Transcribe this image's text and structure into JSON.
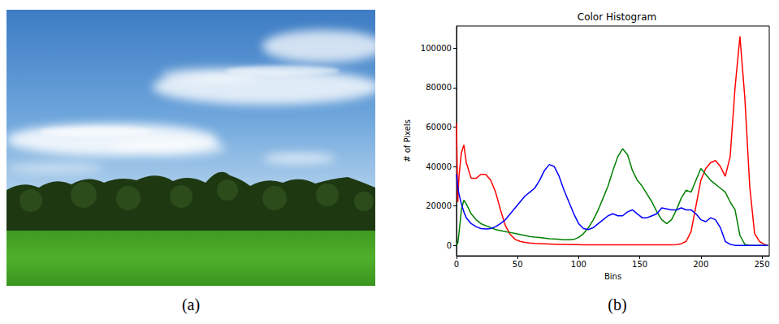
{
  "panel_labels": [
    "(a)",
    "(b)"
  ],
  "chart_data": {
    "type": "line",
    "title": "Color Histogram",
    "x_label": "Bins",
    "y_label": "# of Pixels",
    "x": [
      0,
      1,
      2,
      4,
      6,
      8,
      12,
      16,
      20,
      24,
      28,
      32,
      36,
      40,
      44,
      48,
      52,
      56,
      60,
      64,
      68,
      72,
      76,
      80,
      84,
      88,
      92,
      96,
      100,
      104,
      108,
      112,
      116,
      120,
      124,
      128,
      132,
      136,
      140,
      144,
      148,
      152,
      156,
      160,
      164,
      168,
      172,
      176,
      180,
      184,
      188,
      192,
      196,
      200,
      204,
      208,
      212,
      216,
      220,
      224,
      228,
      232,
      236,
      240,
      244,
      248,
      252,
      255
    ],
    "series": [
      {
        "color": "#ff0000",
        "values": [
          62000,
          22000,
          35000,
          47000,
          51000,
          42000,
          34000,
          34000,
          36000,
          36000,
          33000,
          27000,
          18000,
          10000,
          5500,
          3000,
          2000,
          1500,
          1200,
          1000,
          900,
          800,
          700,
          600,
          500,
          500,
          400,
          400,
          400,
          300,
          300,
          300,
          300,
          300,
          300,
          300,
          300,
          300,
          300,
          300,
          300,
          300,
          300,
          300,
          300,
          300,
          300,
          300,
          400,
          800,
          2000,
          7000,
          20000,
          33000,
          39000,
          42000,
          43000,
          40000,
          35000,
          45000,
          80000,
          106000,
          75000,
          30000,
          6000,
          2000,
          500,
          0
        ]
      },
      {
        "color": "#008000",
        "values": [
          0,
          1000,
          6000,
          18000,
          23000,
          21000,
          16000,
          13000,
          11000,
          10000,
          9000,
          8000,
          7500,
          7000,
          6500,
          6000,
          5500,
          5000,
          4500,
          4200,
          4000,
          3700,
          3400,
          3200,
          3000,
          2800,
          2800,
          3000,
          4000,
          6000,
          9000,
          13000,
          18000,
          24000,
          30000,
          38000,
          45000,
          49000,
          46000,
          38000,
          33000,
          30000,
          26000,
          22000,
          17000,
          13000,
          11000,
          13000,
          18000,
          24000,
          28000,
          27000,
          33000,
          39000,
          36000,
          33000,
          31000,
          29000,
          27000,
          22000,
          18000,
          5000,
          500,
          0,
          0,
          0,
          0,
          0
        ]
      },
      {
        "color": "#0000ff",
        "values": [
          36000,
          30000,
          26000,
          21000,
          17000,
          14000,
          11000,
          9500,
          8500,
          8300,
          8500,
          9500,
          11000,
          13000,
          16000,
          19000,
          22000,
          25000,
          27000,
          29000,
          33000,
          38000,
          41000,
          40000,
          35000,
          28000,
          22000,
          16000,
          11000,
          8500,
          8000,
          9000,
          11000,
          13000,
          15000,
          16000,
          15000,
          15000,
          17000,
          18000,
          16000,
          14000,
          14000,
          15000,
          16000,
          19000,
          18500,
          18000,
          18000,
          19000,
          18000,
          18000,
          16000,
          13000,
          12000,
          14000,
          13000,
          9000,
          2000,
          500,
          0,
          0,
          0,
          0,
          0,
          0,
          0,
          0
        ]
      }
    ],
    "xlim": [
      0,
      256
    ],
    "xticks": [
      0,
      50,
      100,
      150,
      200,
      250
    ],
    "ylim": [
      -5300,
      111300
    ],
    "yticks": [
      0,
      20000,
      40000,
      60000,
      80000,
      100000
    ],
    "grid": false
  }
}
